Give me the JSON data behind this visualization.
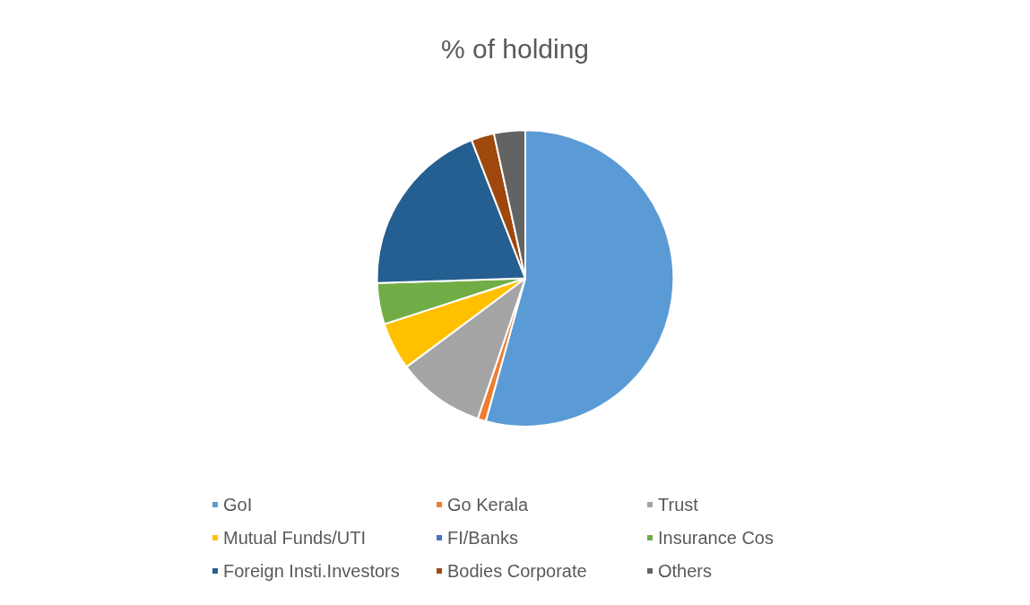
{
  "chart_data": {
    "type": "pie",
    "title": "% of holding",
    "categories": [
      "GoI",
      "Go Kerala",
      "Trust",
      "Mutual Funds/UTI",
      "FI/Banks",
      "Insurance Cos",
      "Foreign Insti.Investors",
      "Bodies Corporate",
      "Others"
    ],
    "values": [
      54.3,
      0.9,
      9.6,
      5.2,
      null,
      4.5,
      19.6,
      2.5,
      3.4
    ],
    "colors": [
      "#5b9bd5",
      "#ed7d31",
      "#a5a5a5",
      "#ffc000",
      "#4472c4",
      "#70ad47",
      "#255e91",
      "#9e480e",
      "#636363"
    ],
    "legend": "bottom"
  }
}
